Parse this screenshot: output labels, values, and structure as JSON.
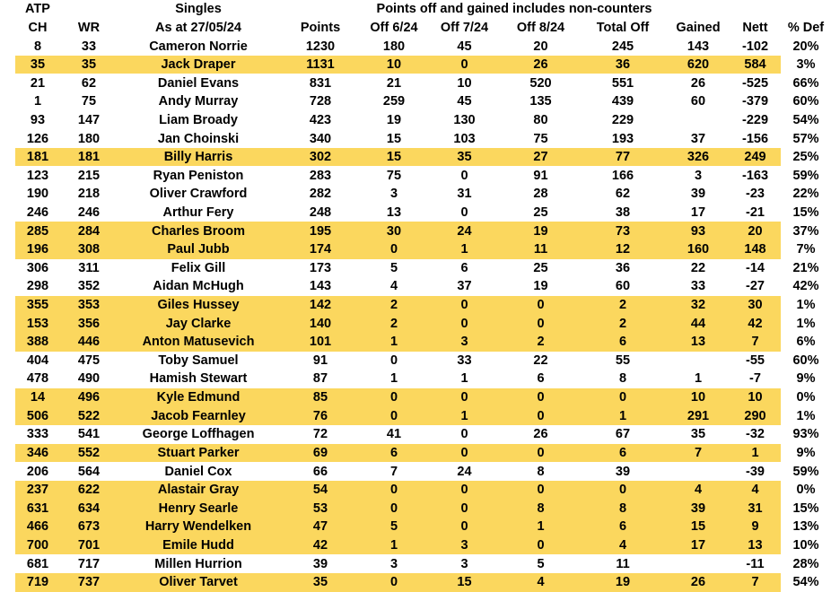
{
  "header": {
    "atp": "ATP",
    "singles": "Singles",
    "note": "Points off and gained includes non-counters"
  },
  "colors": {
    "highlight": "#FBD75E",
    "negative_text": "#DD2B1F",
    "text": "#000000"
  },
  "table": {
    "columns": [
      "CH",
      "WR",
      "As at 27/05/24",
      "Points",
      "Off 6/24",
      "Off 7/24",
      "Off 8/24",
      "Total Off",
      "Gained",
      "Nett",
      "% Def"
    ],
    "fields": [
      "ch",
      "wr",
      "name",
      "points",
      "off-6-24",
      "off-7-24",
      "off-8-24",
      "total-off",
      "gained",
      "nett",
      "pct-def"
    ],
    "rows": [
      {
        "highlight": false,
        "cells": [
          "8",
          "33",
          "Cameron Norrie",
          "1230",
          "180",
          "45",
          "20",
          "245",
          "143",
          "-102",
          "20%"
        ]
      },
      {
        "highlight": true,
        "cells": [
          "35",
          "35",
          "Jack Draper",
          "1131",
          "10",
          "0",
          "26",
          "36",
          "620",
          "584",
          "3%"
        ]
      },
      {
        "highlight": false,
        "cells": [
          "21",
          "62",
          "Daniel Evans",
          "831",
          "21",
          "10",
          "520",
          "551",
          "26",
          "-525",
          "66%"
        ]
      },
      {
        "highlight": false,
        "cells": [
          "1",
          "75",
          "Andy Murray",
          "728",
          "259",
          "45",
          "135",
          "439",
          "60",
          "-379",
          "60%"
        ]
      },
      {
        "highlight": false,
        "cells": [
          "93",
          "147",
          "Liam Broady",
          "423",
          "19",
          "130",
          "80",
          "229",
          "",
          "-229",
          "54%"
        ]
      },
      {
        "highlight": false,
        "cells": [
          "126",
          "180",
          "Jan Choinski",
          "340",
          "15",
          "103",
          "75",
          "193",
          "37",
          "-156",
          "57%"
        ]
      },
      {
        "highlight": true,
        "cells": [
          "181",
          "181",
          "Billy Harris",
          "302",
          "15",
          "35",
          "27",
          "77",
          "326",
          "249",
          "25%"
        ]
      },
      {
        "highlight": false,
        "cells": [
          "123",
          "215",
          "Ryan Peniston",
          "283",
          "75",
          "0",
          "91",
          "166",
          "3",
          "-163",
          "59%"
        ]
      },
      {
        "highlight": false,
        "cells": [
          "190",
          "218",
          "Oliver Crawford",
          "282",
          "3",
          "31",
          "28",
          "62",
          "39",
          "-23",
          "22%"
        ]
      },
      {
        "highlight": false,
        "cells": [
          "246",
          "246",
          "Arthur Fery",
          "248",
          "13",
          "0",
          "25",
          "38",
          "17",
          "-21",
          "15%"
        ]
      },
      {
        "highlight": true,
        "cells": [
          "285",
          "284",
          "Charles Broom",
          "195",
          "30",
          "24",
          "19",
          "73",
          "93",
          "20",
          "37%"
        ]
      },
      {
        "highlight": true,
        "cells": [
          "196",
          "308",
          "Paul Jubb",
          "174",
          "0",
          "1",
          "11",
          "12",
          "160",
          "148",
          "7%"
        ]
      },
      {
        "highlight": false,
        "cells": [
          "306",
          "311",
          "Felix Gill",
          "173",
          "5",
          "6",
          "25",
          "36",
          "22",
          "-14",
          "21%"
        ]
      },
      {
        "highlight": false,
        "cells": [
          "298",
          "352",
          "Aidan McHugh",
          "143",
          "4",
          "37",
          "19",
          "60",
          "33",
          "-27",
          "42%"
        ]
      },
      {
        "highlight": true,
        "cells": [
          "355",
          "353",
          "Giles Hussey",
          "142",
          "2",
          "0",
          "0",
          "2",
          "32",
          "30",
          "1%"
        ]
      },
      {
        "highlight": true,
        "cells": [
          "153",
          "356",
          "Jay Clarke",
          "140",
          "2",
          "0",
          "0",
          "2",
          "44",
          "42",
          "1%"
        ]
      },
      {
        "highlight": true,
        "cells": [
          "388",
          "446",
          "Anton Matusevich",
          "101",
          "1",
          "3",
          "2",
          "6",
          "13",
          "7",
          "6%"
        ]
      },
      {
        "highlight": false,
        "cells": [
          "404",
          "475",
          "Toby Samuel",
          "91",
          "0",
          "33",
          "22",
          "55",
          "",
          "-55",
          "60%"
        ]
      },
      {
        "highlight": false,
        "cells": [
          "478",
          "490",
          "Hamish Stewart",
          "87",
          "1",
          "1",
          "6",
          "8",
          "1",
          "-7",
          "9%"
        ]
      },
      {
        "highlight": true,
        "cells": [
          "14",
          "496",
          "Kyle Edmund",
          "85",
          "0",
          "0",
          "0",
          "0",
          "10",
          "10",
          "0%"
        ]
      },
      {
        "highlight": true,
        "cells": [
          "506",
          "522",
          "Jacob Fearnley",
          "76",
          "0",
          "1",
          "0",
          "1",
          "291",
          "290",
          "1%"
        ]
      },
      {
        "highlight": false,
        "cells": [
          "333",
          "541",
          "George Loffhagen",
          "72",
          "41",
          "0",
          "26",
          "67",
          "35",
          "-32",
          "93%"
        ]
      },
      {
        "highlight": true,
        "cells": [
          "346",
          "552",
          "Stuart Parker",
          "69",
          "6",
          "0",
          "0",
          "6",
          "7",
          "1",
          "9%"
        ]
      },
      {
        "highlight": false,
        "cells": [
          "206",
          "564",
          "Daniel Cox",
          "66",
          "7",
          "24",
          "8",
          "39",
          "",
          "-39",
          "59%"
        ]
      },
      {
        "highlight": true,
        "cells": [
          "237",
          "622",
          "Alastair Gray",
          "54",
          "0",
          "0",
          "0",
          "0",
          "4",
          "4",
          "0%"
        ]
      },
      {
        "highlight": true,
        "cells": [
          "631",
          "634",
          "Henry Searle",
          "53",
          "0",
          "0",
          "8",
          "8",
          "39",
          "31",
          "15%"
        ]
      },
      {
        "highlight": true,
        "cells": [
          "466",
          "673",
          "Harry Wendelken",
          "47",
          "5",
          "0",
          "1",
          "6",
          "15",
          "9",
          "13%"
        ]
      },
      {
        "highlight": true,
        "cells": [
          "700",
          "701",
          "Emile Hudd",
          "42",
          "1",
          "3",
          "0",
          "4",
          "17",
          "13",
          "10%"
        ]
      },
      {
        "highlight": false,
        "cells": [
          "681",
          "717",
          "Millen Hurrion",
          "39",
          "3",
          "3",
          "5",
          "11",
          "",
          "-11",
          "28%"
        ]
      },
      {
        "highlight": true,
        "cells": [
          "719",
          "737",
          "Oliver Tarvet",
          "35",
          "0",
          "15",
          "4",
          "19",
          "26",
          "7",
          "54%"
        ]
      }
    ]
  }
}
